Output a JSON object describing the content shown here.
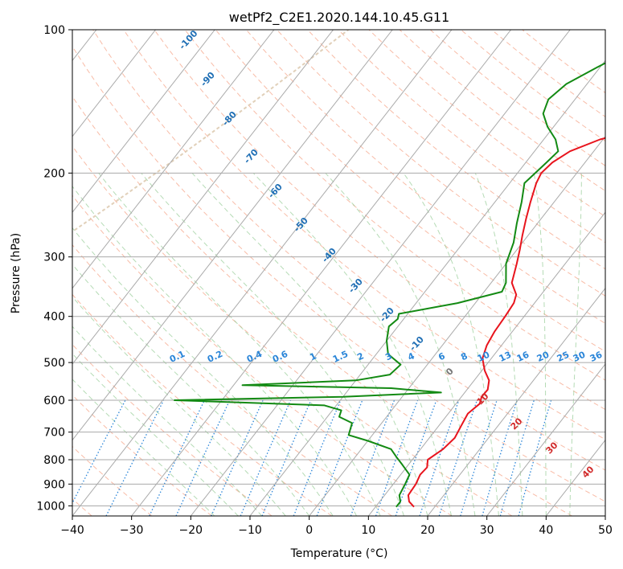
{
  "chart_data": {
    "type": "line",
    "title": "wetPf2_C2E1.2020.144.10.45.G11",
    "xlabel": "Temperature (°C)",
    "ylabel": "Pressure (hPa)",
    "xlim": [
      -40,
      50
    ],
    "ylim": [
      1050,
      100
    ],
    "y_scale": "log",
    "grid": true,
    "x_ticks": [
      "−40",
      "−30",
      "−20",
      "−10",
      "0",
      "10",
      "20",
      "30",
      "40",
      "50"
    ],
    "x_tick_values": [
      -40,
      -30,
      -20,
      -10,
      0,
      10,
      20,
      30,
      40,
      50
    ],
    "y_ticks": [
      "100",
      "200",
      "300",
      "400",
      "500",
      "600",
      "700",
      "800",
      "900",
      "1000"
    ],
    "y_tick_values": [
      100,
      200,
      300,
      400,
      500,
      600,
      700,
      800,
      900,
      1000
    ],
    "dry_adiabat_labels": [
      "-100",
      "-90",
      "-80",
      "-70",
      "-60",
      "-50",
      "-40",
      "-30",
      "-20",
      "-10"
    ],
    "dry_adiabat_label_values": [
      -100,
      -90,
      -80,
      -70,
      -60,
      -50,
      -40,
      -30,
      -20,
      -10
    ],
    "mixing_ratio_labels": [
      "0.1",
      "0.2",
      "0.4",
      "0.6",
      "1",
      "1.5",
      "2",
      "3",
      "4",
      "6",
      "8",
      "10",
      "13",
      "16",
      "20",
      "25",
      "30",
      "36"
    ],
    "mixing_ratio_values": [
      0.1,
      0.2,
      0.4,
      0.6,
      1,
      1.5,
      2,
      3,
      4,
      6,
      8,
      10,
      13,
      16,
      20,
      25,
      30,
      36
    ],
    "moist_adiabat_labels": [
      "0",
      "10",
      "20",
      "30",
      "40"
    ],
    "moist_adiabat_values": [
      0,
      10,
      20,
      30,
      40
    ],
    "colors": {
      "temperature": "#e8141d",
      "dewpoint": "#138a13",
      "isotherm": "#aaaaaa",
      "isobar": "#aaaaaa",
      "dry_adiabat": "#f5a58a",
      "moist_adiabat": "#95cc95",
      "mixing_ratio": "#2a85d8",
      "dry_label": "#1f6fb5",
      "mix_label": "#2a85d8",
      "moist_label_zero": "#777777",
      "moist_label": "#d12a2a",
      "outer_curve": "#d9c4a8"
    },
    "series": [
      {
        "name": "Temperature",
        "points": [
          {
            "p": 1005,
            "t": 16.5
          },
          {
            "p": 980,
            "t": 15.0
          },
          {
            "p": 950,
            "t": 14.0
          },
          {
            "p": 900,
            "t": 13.8
          },
          {
            "p": 860,
            "t": 13.3
          },
          {
            "p": 830,
            "t": 13.5
          },
          {
            "p": 800,
            "t": 12.6
          },
          {
            "p": 760,
            "t": 13.8
          },
          {
            "p": 720,
            "t": 14.3
          },
          {
            "p": 680,
            "t": 13.8
          },
          {
            "p": 640,
            "t": 13.3
          },
          {
            "p": 610,
            "t": 14.0
          },
          {
            "p": 590,
            "t": 13.4
          },
          {
            "p": 570,
            "t": 13.5
          },
          {
            "p": 545,
            "t": 12.5
          },
          {
            "p": 520,
            "t": 10.5
          },
          {
            "p": 490,
            "t": 8.5
          },
          {
            "p": 460,
            "t": 7.5
          },
          {
            "p": 430,
            "t": 7.0
          },
          {
            "p": 400,
            "t": 6.8
          },
          {
            "p": 375,
            "t": 6.5
          },
          {
            "p": 360,
            "t": 5.8
          },
          {
            "p": 340,
            "t": 3.5
          },
          {
            "p": 310,
            "t": 1.8
          },
          {
            "p": 290,
            "t": 0.5
          },
          {
            "p": 270,
            "t": -1.0
          },
          {
            "p": 250,
            "t": -2.5
          },
          {
            "p": 230,
            "t": -4.0
          },
          {
            "p": 210,
            "t": -5.5
          },
          {
            "p": 200,
            "t": -6.0
          },
          {
            "p": 190,
            "t": -5.5
          },
          {
            "p": 180,
            "t": -4.0
          },
          {
            "p": 170,
            "t": -0.5
          },
          {
            "p": 160,
            "t": 6.0
          },
          {
            "p": 150,
            "t": 10.0
          },
          {
            "p": 140,
            "t": 12.5
          },
          {
            "p": 130,
            "t": 14.5
          },
          {
            "p": 120,
            "t": 16.0
          },
          {
            "p": 110,
            "t": 17.5
          },
          {
            "p": 100,
            "t": 18.5
          }
        ]
      },
      {
        "name": "Dewpoint",
        "points": [
          {
            "p": 1005,
            "t": 13.5
          },
          {
            "p": 980,
            "t": 13.5
          },
          {
            "p": 950,
            "t": 12.5
          },
          {
            "p": 900,
            "t": 12.0
          },
          {
            "p": 860,
            "t": 11.5
          },
          {
            "p": 820,
            "t": 9.0
          },
          {
            "p": 790,
            "t": 7.0
          },
          {
            "p": 760,
            "t": 5.0
          },
          {
            "p": 730,
            "t": 0.0
          },
          {
            "p": 710,
            "t": -4.0
          },
          {
            "p": 690,
            "t": -4.5
          },
          {
            "p": 670,
            "t": -5.0
          },
          {
            "p": 650,
            "t": -8.0
          },
          {
            "p": 630,
            "t": -8.5
          },
          {
            "p": 615,
            "t": -12.0
          },
          {
            "p": 600,
            "t": -38.0
          },
          {
            "p": 590,
            "t": -10.0
          },
          {
            "p": 578,
            "t": 6.0
          },
          {
            "p": 566,
            "t": -3.0
          },
          {
            "p": 558,
            "t": -28.5
          },
          {
            "p": 545,
            "t": -10.0
          },
          {
            "p": 530,
            "t": -5.0
          },
          {
            "p": 505,
            "t": -4.5
          },
          {
            "p": 480,
            "t": -8.0
          },
          {
            "p": 450,
            "t": -10.0
          },
          {
            "p": 420,
            "t": -11.5
          },
          {
            "p": 405,
            "t": -11.0
          },
          {
            "p": 395,
            "t": -11.5
          },
          {
            "p": 375,
            "t": -3.0
          },
          {
            "p": 355,
            "t": 3.0
          },
          {
            "p": 340,
            "t": 2.5
          },
          {
            "p": 310,
            "t": 0.0
          },
          {
            "p": 280,
            "t": -1.5
          },
          {
            "p": 255,
            "t": -3.5
          },
          {
            "p": 230,
            "t": -5.5
          },
          {
            "p": 210,
            "t": -7.5
          },
          {
            "p": 190,
            "t": -6.5
          },
          {
            "p": 180,
            "t": -6.0
          },
          {
            "p": 170,
            "t": -8.0
          },
          {
            "p": 160,
            "t": -11.0
          },
          {
            "p": 150,
            "t": -13.5
          },
          {
            "p": 140,
            "t": -14.5
          },
          {
            "p": 130,
            "t": -13.5
          },
          {
            "p": 120,
            "t": -10.5
          },
          {
            "p": 110,
            "t": -7.0
          },
          {
            "p": 100,
            "t": -5.0
          }
        ]
      }
    ]
  }
}
